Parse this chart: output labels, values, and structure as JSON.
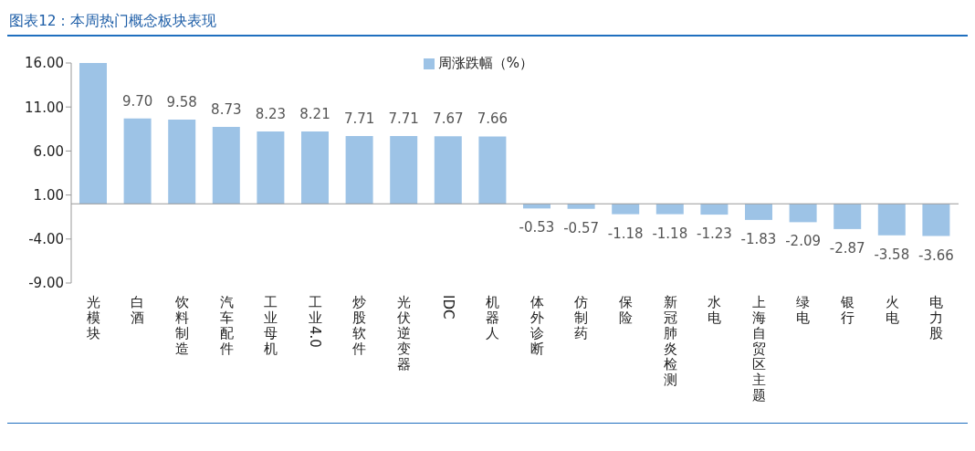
{
  "chart_data": {
    "type": "bar",
    "title": "图表12：本周热门概念板块表现",
    "categories": [
      "光模块",
      "白酒",
      "饮料制造",
      "汽车配件",
      "工业母机",
      "工业4.0",
      "炒股软件",
      "光伏逆变器",
      "IDC",
      "机器人",
      "体外诊断",
      "仿制药",
      "保险",
      "新冠肺炎检测",
      "水电",
      "上海自贸区主题",
      "绿电",
      "银行",
      "火电",
      "电力股"
    ],
    "series": [
      {
        "name": "周涨跌幅（%）",
        "color": "#9dc3e6",
        "values": [
          16.0,
          9.7,
          9.58,
          8.73,
          8.23,
          8.21,
          7.71,
          7.71,
          7.67,
          7.66,
          -0.53,
          -0.57,
          -1.18,
          -1.18,
          -1.23,
          -1.83,
          -2.09,
          -2.87,
          -3.58,
          -3.66
        ],
        "value_labels": [
          null,
          "9.70",
          "9.58",
          "8.73",
          "8.23",
          "8.21",
          "7.71",
          "7.71",
          "7.67",
          "7.66",
          "-0.53",
          "-0.57",
          "-1.18",
          "-1.18",
          "-1.23",
          "-1.83",
          "-2.09",
          "-2.87",
          "-3.58",
          "-3.66"
        ]
      }
    ],
    "ylim": [
      -9,
      16
    ],
    "yticks": [
      {
        "value": 16,
        "label": "16.00"
      },
      {
        "value": 11,
        "label": "11.00"
      },
      {
        "value": 6,
        "label": "6.00"
      },
      {
        "value": 1,
        "label": "1.00"
      },
      {
        "value": -4,
        "label": "-4.00"
      },
      {
        "value": -9,
        "label": "-9.00"
      }
    ],
    "legend": "top"
  }
}
